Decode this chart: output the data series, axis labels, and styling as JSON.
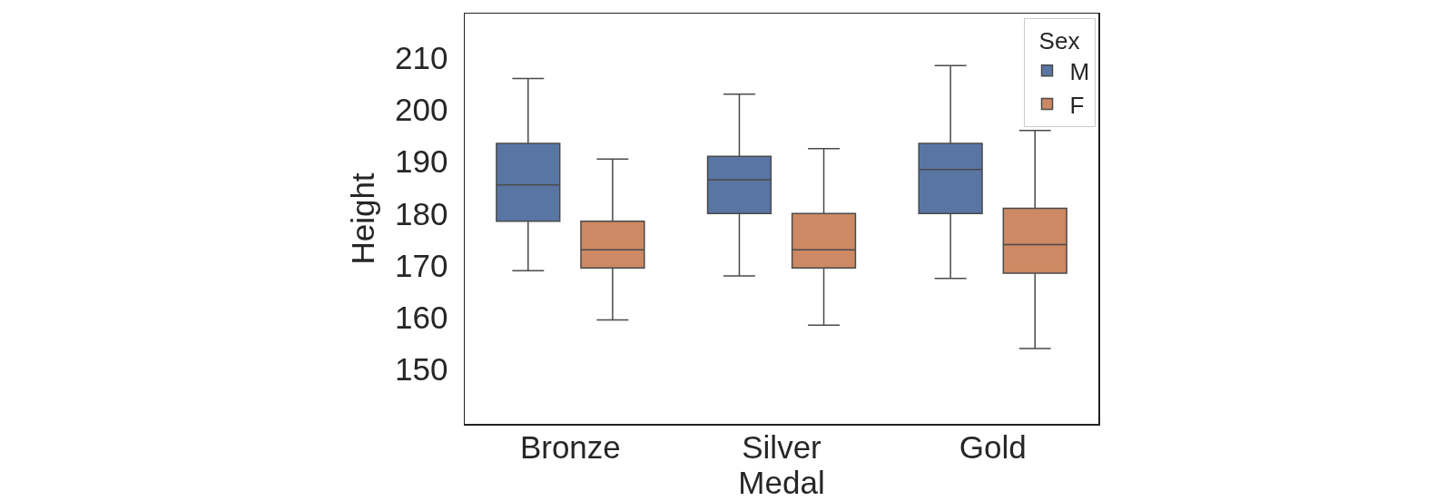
{
  "chart_data": {
    "type": "box",
    "xlabel": "Medal",
    "ylabel": "Height",
    "legend_title": "Sex",
    "categories": [
      "Bronze",
      "Silver",
      "Gold"
    ],
    "series": [
      {
        "name": "M",
        "color": "#5975a4",
        "boxes": [
          {
            "low": 169,
            "q1": 178.5,
            "median": 185.5,
            "q3": 193.5,
            "high": 206
          },
          {
            "low": 168,
            "q1": 180,
            "median": 186.5,
            "q3": 191,
            "high": 203
          },
          {
            "low": 167.5,
            "q1": 180,
            "median": 188.5,
            "q3": 193.5,
            "high": 208.5
          }
        ]
      },
      {
        "name": "F",
        "color": "#cc8963",
        "boxes": [
          {
            "low": 159.5,
            "q1": 169.5,
            "median": 173,
            "q3": 178.5,
            "high": 190.5
          },
          {
            "low": 158.5,
            "q1": 169.5,
            "median": 173,
            "q3": 180,
            "high": 192.5
          },
          {
            "low": 154,
            "q1": 168.5,
            "median": 174,
            "q3": 181,
            "high": 196
          }
        ]
      }
    ],
    "ylim": [
      139.5,
      218.5
    ],
    "yticks": [
      150,
      160,
      170,
      180,
      190,
      200,
      210
    ],
    "legend": "top right"
  }
}
